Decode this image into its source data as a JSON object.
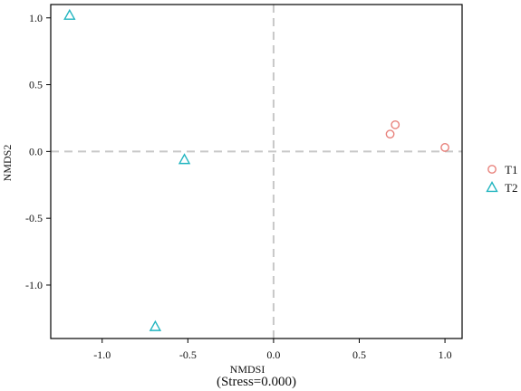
{
  "chart_data": {
    "type": "scatter",
    "xlabel": "NMDSI",
    "ylabel": "NMDS2",
    "annotation": "(Stress=0.000)",
    "xlim": [
      -1.3,
      1.1
    ],
    "ylim": [
      -1.4,
      1.1
    ],
    "xticks": [
      "-1.0",
      "-0.5",
      "0.0",
      "0.5",
      "1.0"
    ],
    "xtick_values": [
      -1.0,
      -0.5,
      0.0,
      0.5,
      1.0
    ],
    "yticks": [
      "1.0",
      "0.5",
      "0.0",
      "-0.5",
      "-1.0"
    ],
    "ytick_values": [
      1.0,
      0.5,
      0.0,
      -0.5,
      -1.0
    ],
    "reference_lines": {
      "x": 0,
      "y": 0,
      "style": "dashed",
      "color": "#c8c8c8"
    },
    "grid": false,
    "legend_position": "right",
    "series": [
      {
        "name": "T1",
        "marker": "circle",
        "color": "#e8827c",
        "points": [
          [
            0.68,
            0.13
          ],
          [
            0.71,
            0.2
          ],
          [
            1.0,
            0.03
          ]
        ]
      },
      {
        "name": "T2",
        "marker": "triangle",
        "color": "#22b5c0",
        "points": [
          [
            -1.19,
            1.02
          ],
          [
            -0.52,
            -0.06
          ],
          [
            -0.69,
            -1.31
          ]
        ]
      }
    ]
  }
}
